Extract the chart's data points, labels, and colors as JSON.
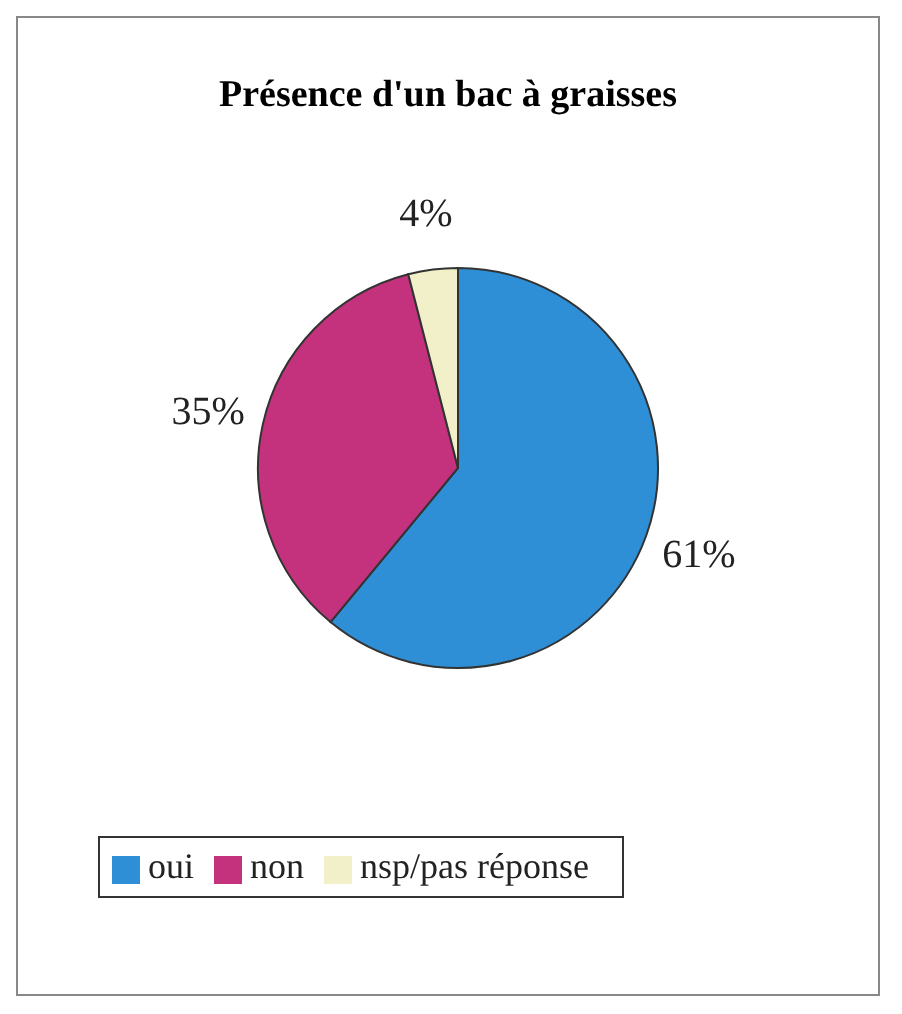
{
  "chart_data": {
    "type": "pie",
    "title": "Présence d'un bac à graisses",
    "categories": [
      "oui",
      "non",
      "nsp/pas réponse"
    ],
    "values": [
      61,
      35,
      4
    ],
    "colors": [
      "#2e8fd6",
      "#c4327e",
      "#f2f0c8"
    ],
    "value_labels": [
      "61%",
      "35%",
      "4%"
    ],
    "legend": "bottom"
  }
}
